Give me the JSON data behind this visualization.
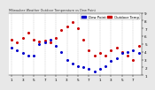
{
  "title": "Milwaukee Weather Outdoor Temperature vs Dew Point (24 Hours)",
  "bg_color": "#e8e8e8",
  "plot_bg": "#ffffff",
  "temp_color": "#cc0000",
  "dew_color": "#0000cc",
  "legend_label_temp": "Outdoor Temp",
  "legend_label_dew": "Dew Point",
  "hours": [
    0,
    1,
    2,
    3,
    4,
    5,
    6,
    7,
    8,
    9,
    10,
    11,
    12,
    13,
    14,
    15,
    16,
    17,
    18,
    19,
    20,
    21,
    22,
    23
  ],
  "temp": [
    5.5,
    5.2,
    5.8,
    6.5,
    5.5,
    5.3,
    5.4,
    5.2,
    5.8,
    6.8,
    7.2,
    7.8,
    7.0,
    5.5,
    4.2,
    3.5,
    3.8,
    3.5,
    4.2,
    4.5,
    4.0,
    3.5,
    3.0,
    4.8
  ],
  "dew": [
    4.5,
    4.2,
    3.8,
    3.5,
    3.5,
    5.0,
    5.2,
    5.5,
    4.8,
    4.0,
    3.0,
    2.5,
    2.2,
    2.0,
    1.8,
    1.5,
    1.8,
    2.2,
    2.8,
    3.2,
    3.8,
    4.0,
    4.2,
    3.8
  ],
  "ylim_min": 1,
  "ylim_max": 9,
  "ytick_vals": [
    1,
    2,
    3,
    4,
    5,
    6,
    7,
    8,
    9
  ],
  "grid_color": "#aaaaaa",
  "tick_label_fontsize": 3.0,
  "legend_fontsize": 2.8,
  "marker_size": 1.2,
  "xtick_labels": [
    "1",
    "3",
    "5",
    "7",
    "1",
    "3",
    "5",
    "7",
    "1",
    "3",
    "5",
    "7",
    "1"
  ],
  "xtick_positions": [
    0,
    2,
    4,
    6,
    8,
    10,
    12,
    14,
    16,
    18,
    20,
    22,
    24
  ],
  "vgrid_positions": [
    0,
    2,
    4,
    6,
    8,
    10,
    12,
    14,
    16,
    18,
    20,
    22
  ]
}
